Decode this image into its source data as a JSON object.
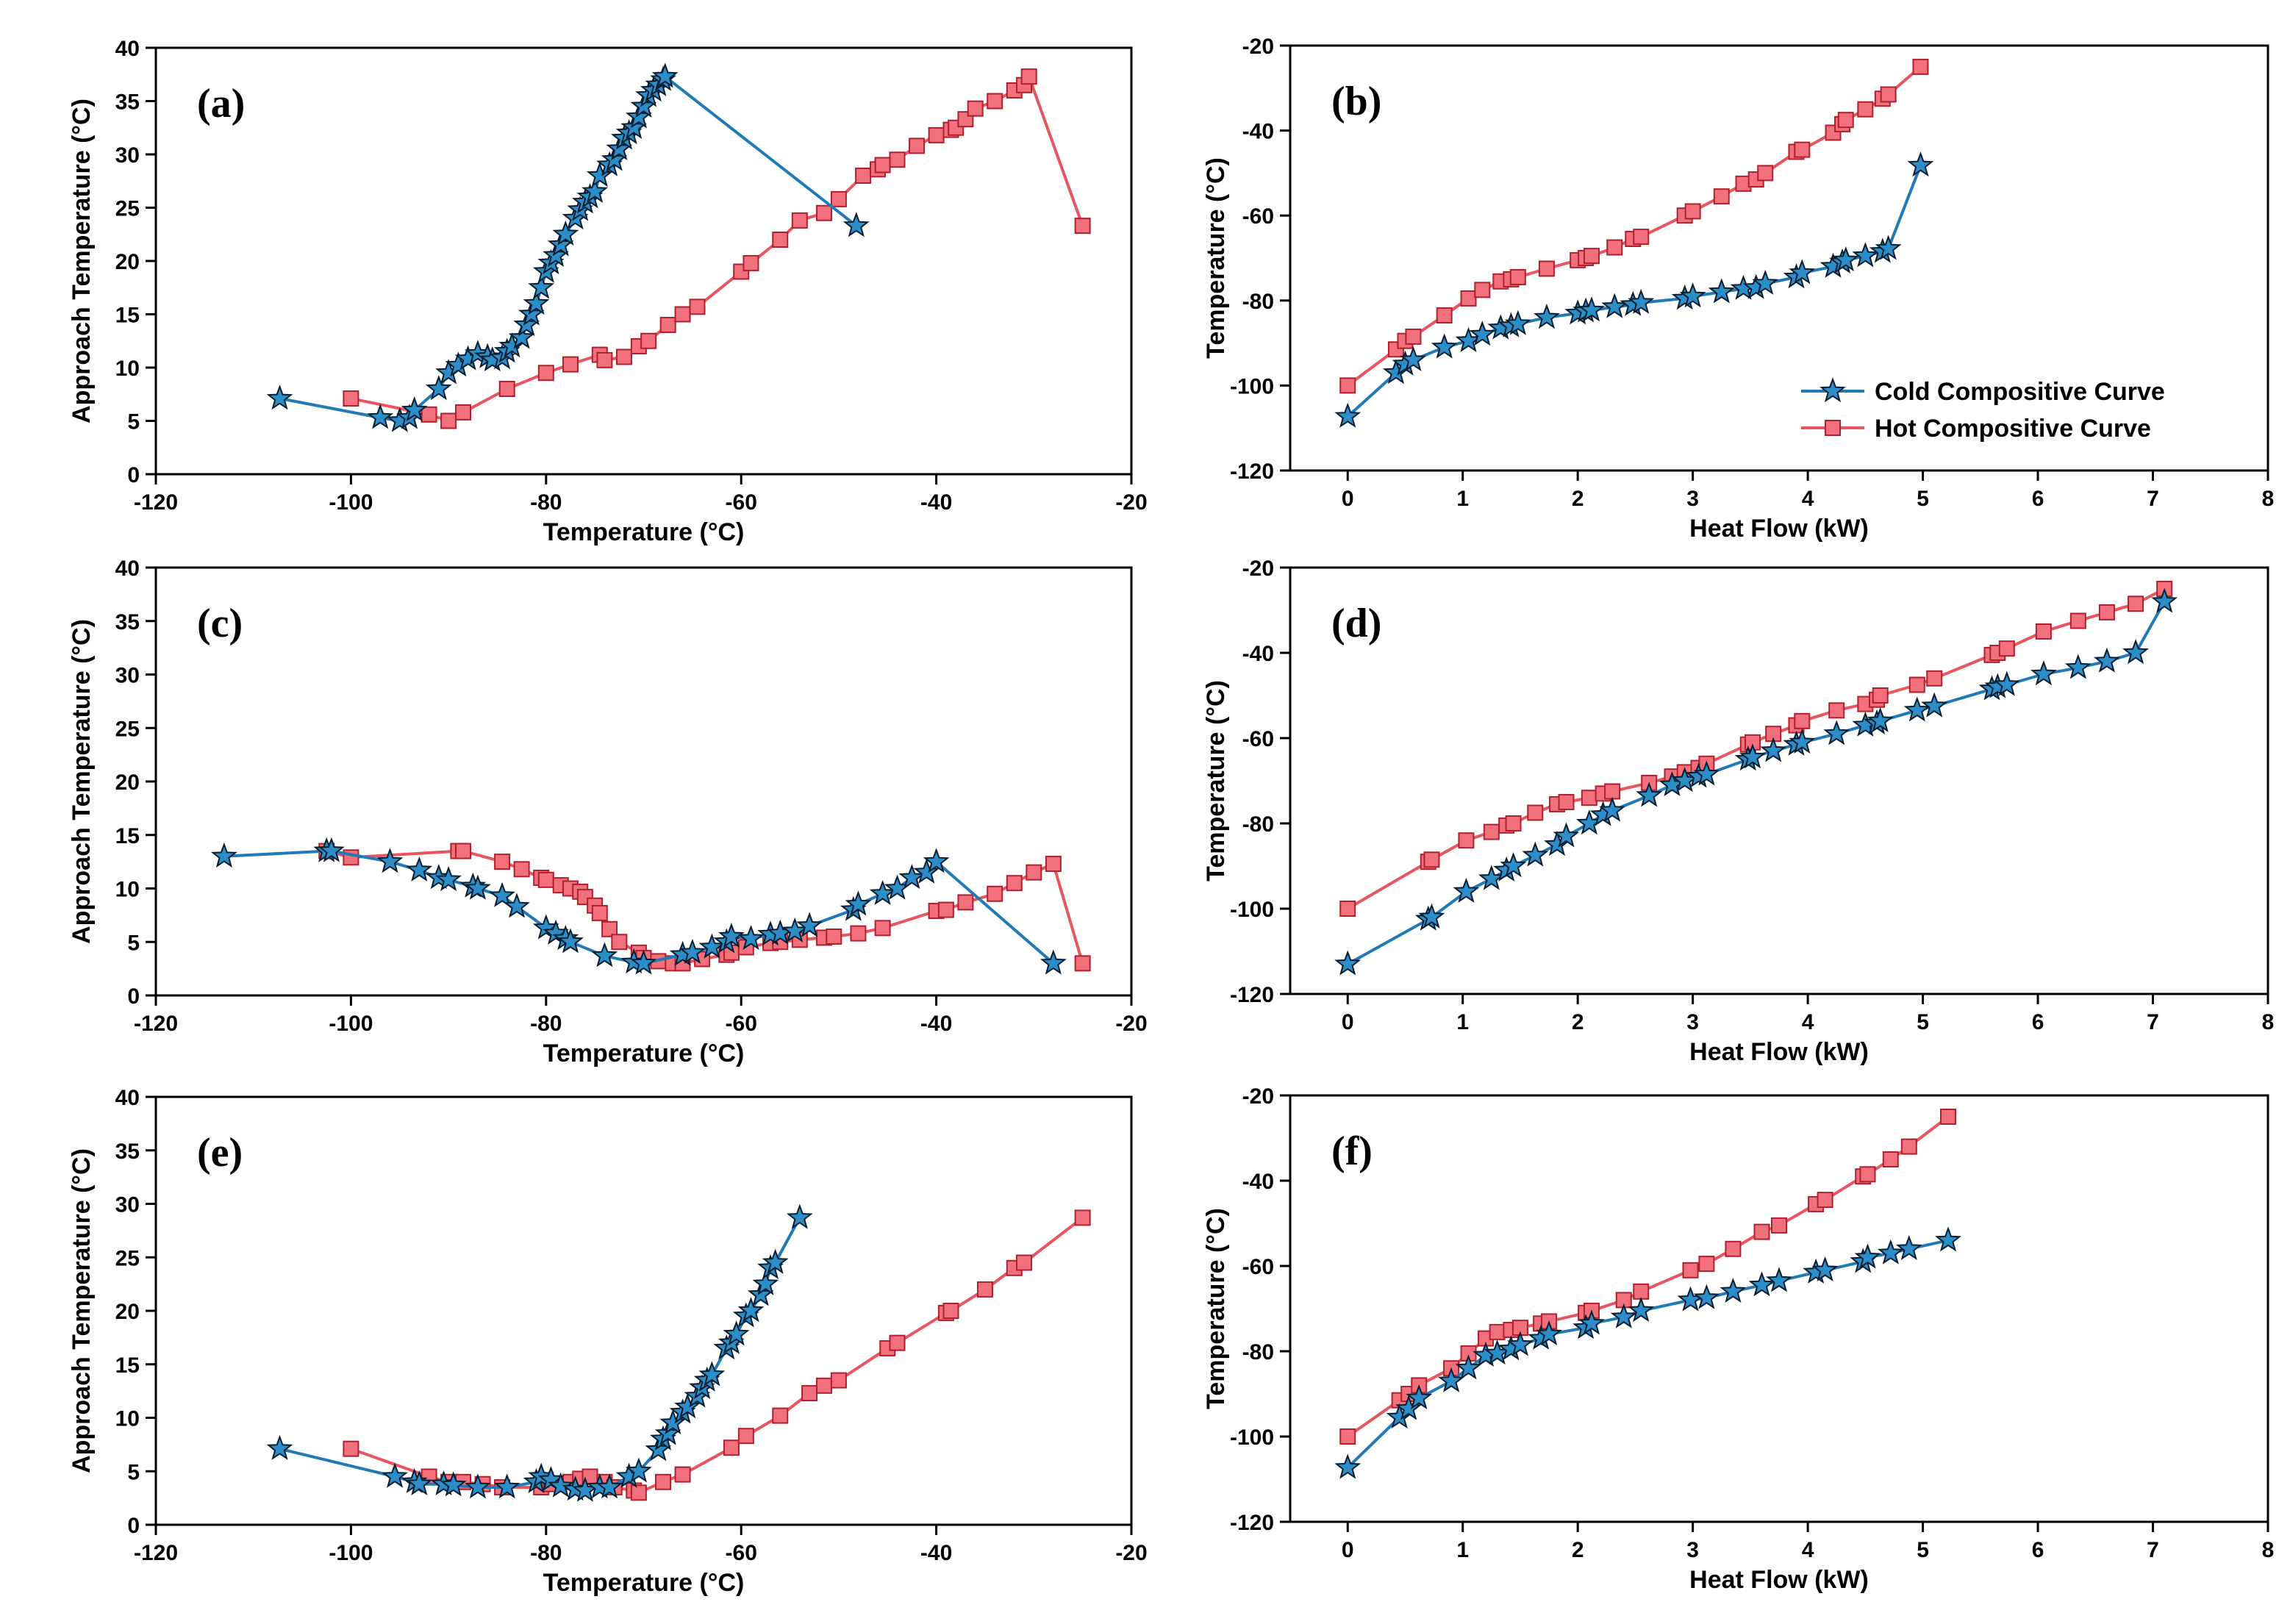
{
  "colors": {
    "cold": "#1f7ab5",
    "hot": "#e8555f",
    "hot_fill": "#f1707b",
    "cold_fill": "#2b8ec9"
  },
  "legend": {
    "cold": "Cold Compositive Curve",
    "hot": "Hot Compositive Curve"
  },
  "chart_data": [
    {
      "id": "a",
      "panel_label": "(a)",
      "type": "line",
      "xlabel": "Temperature (°C)",
      "ylabel": "Approach Temperature (°C)",
      "xlim": [
        -120,
        -20
      ],
      "ylim": [
        0,
        40
      ],
      "xticks": [
        -120,
        -100,
        -80,
        -60,
        -40,
        -20
      ],
      "yticks": [
        0,
        5,
        10,
        15,
        20,
        25,
        30,
        35,
        40
      ],
      "series": [
        {
          "name": "Cold",
          "marker": "star",
          "x": [
            -107.3,
            -97,
            -95,
            -94,
            -93.5,
            -91,
            -90,
            -89,
            -88,
            -87,
            -86,
            -85.5,
            -84.5,
            -84,
            -83.5,
            -82.5,
            -82,
            -81.5,
            -81,
            -80.5,
            -80,
            -79.5,
            -79,
            -78.5,
            -78,
            -77,
            -76.5,
            -76,
            -75.5,
            -75,
            -74.5,
            -73.5,
            -73,
            -72.5,
            -72,
            -71.5,
            -71,
            -70.5,
            -70,
            -69.5,
            -69,
            -68.5,
            -68,
            -67.8,
            -48.2
          ],
          "y": [
            7.1,
            5.3,
            5.0,
            5.3,
            6.0,
            8.0,
            9.5,
            10.2,
            10.8,
            11.3,
            11.0,
            10.7,
            10.9,
            11.5,
            12.0,
            12.8,
            14.0,
            15.0,
            16.0,
            17.5,
            19.0,
            19.8,
            20.5,
            21.5,
            22.5,
            24.0,
            24.8,
            25.5,
            26.0,
            26.5,
            28.0,
            29.0,
            29.5,
            30.5,
            31.5,
            32.0,
            32.5,
            33.5,
            34.5,
            35.5,
            36.0,
            36.5,
            37.0,
            37.3,
            23.3
          ]
        },
        {
          "name": "Hot",
          "marker": "square",
          "x": [
            -100,
            -92,
            -90,
            -88.5,
            -84,
            -80,
            -77.5,
            -74.5,
            -74,
            -72,
            -70.5,
            -69.5,
            -67.5,
            -66,
            -64.5,
            -60,
            -59,
            -56,
            -54,
            -51.5,
            -50,
            -47.5,
            -46,
            -45.5,
            -44,
            -42,
            -40,
            -38.5,
            -38,
            -37,
            -36,
            -34,
            -32,
            -31,
            -30.5,
            -25
          ],
          "y": [
            7.1,
            5.6,
            5.0,
            5.8,
            8.0,
            9.5,
            10.3,
            11.2,
            10.7,
            11.0,
            12.0,
            12.5,
            14.0,
            15.0,
            15.7,
            19.0,
            19.8,
            22.0,
            23.8,
            24.5,
            25.8,
            28.0,
            28.6,
            29.0,
            29.5,
            30.8,
            31.8,
            32.3,
            32.5,
            33.3,
            34.3,
            35.0,
            36.0,
            36.5,
            37.3,
            23.3
          ]
        }
      ]
    },
    {
      "id": "b",
      "panel_label": "(b)",
      "type": "line",
      "xlabel": "Heat Flow (kW)",
      "ylabel": "Temperature (°C)",
      "xlim": [
        -0.5,
        8
      ],
      "ylim": [
        -120,
        -20
      ],
      "xticks": [
        0,
        1,
        2,
        3,
        4,
        5,
        6,
        7,
        8
      ],
      "yticks": [
        -120,
        -100,
        -80,
        -60,
        -40,
        -20
      ],
      "legend_position": "lower-right",
      "series": [
        {
          "name": "Cold Compositive Curve",
          "marker": "star",
          "x": [
            0,
            0.42,
            0.5,
            0.57,
            0.84,
            1.05,
            1.17,
            1.33,
            1.42,
            1.48,
            1.73,
            2.0,
            2.07,
            2.12,
            2.32,
            2.48,
            2.55,
            2.93,
            3.0,
            3.25,
            3.44,
            3.55,
            3.63,
            3.9,
            3.95,
            4.22,
            4.3,
            4.33,
            4.5,
            4.65,
            4.7,
            4.98
          ],
          "y": [
            -107.3,
            -97,
            -95,
            -94,
            -91,
            -89.5,
            -88,
            -86.5,
            -86,
            -85.5,
            -84,
            -83,
            -82.5,
            -82.3,
            -81.5,
            -81,
            -80.5,
            -79.5,
            -79,
            -78,
            -77.2,
            -77,
            -76,
            -74.5,
            -73.5,
            -72,
            -71,
            -70.5,
            -69.5,
            -68.5,
            -67.8,
            -48.2
          ]
        },
        {
          "name": "Hot Compositive Curve",
          "marker": "square",
          "x": [
            0,
            0.42,
            0.5,
            0.57,
            0.84,
            1.05,
            1.17,
            1.33,
            1.42,
            1.48,
            1.73,
            2.0,
            2.07,
            2.12,
            2.32,
            2.48,
            2.55,
            2.93,
            3.0,
            3.25,
            3.44,
            3.55,
            3.63,
            3.9,
            3.95,
            4.22,
            4.3,
            4.33,
            4.5,
            4.65,
            4.7,
            4.98
          ],
          "y": [
            -100,
            -91.5,
            -89.5,
            -88.5,
            -83.5,
            -79.5,
            -77.5,
            -75.5,
            -75,
            -74.5,
            -72.5,
            -70.5,
            -70,
            -69.5,
            -67.5,
            -65.5,
            -65,
            -60,
            -59,
            -55.5,
            -52.5,
            -51.5,
            -50,
            -45,
            -44.5,
            -40.5,
            -38.5,
            -37.5,
            -35,
            -32.5,
            -31.5,
            -25
          ]
        }
      ]
    },
    {
      "id": "c",
      "panel_label": "(c)",
      "type": "line",
      "xlabel": "Temperature (°C)",
      "ylabel": "Approach Temperature (°C)",
      "xlim": [
        -120,
        -20
      ],
      "ylim": [
        0,
        40
      ],
      "xticks": [
        -120,
        -100,
        -80,
        -60,
        -40,
        -20
      ],
      "yticks": [
        0,
        5,
        10,
        15,
        20,
        25,
        30,
        35,
        40
      ],
      "series": [
        {
          "name": "Cold",
          "marker": "star",
          "x": [
            -113,
            -102.5,
            -102,
            -96,
            -93,
            -91,
            -90,
            -87.5,
            -87,
            -84.5,
            -83,
            -80,
            -79,
            -78,
            -77.5,
            -74,
            -71,
            -70,
            -66,
            -65,
            -63,
            -61.5,
            -61,
            -59,
            -57,
            -56,
            -54.5,
            -53,
            -48.5,
            -48,
            -45.5,
            -44,
            -42.5,
            -41,
            -40,
            -28
          ],
          "y": [
            13.0,
            13.5,
            13.5,
            12.5,
            11.7,
            11.0,
            10.8,
            10.2,
            10.0,
            9.3,
            8.3,
            6.3,
            5.8,
            5.3,
            5.0,
            3.7,
            3.1,
            3.0,
            3.8,
            4.0,
            4.5,
            5.0,
            5.5,
            5.3,
            5.7,
            5.8,
            6.0,
            6.5,
            8.0,
            8.5,
            9.5,
            10.0,
            11.0,
            11.5,
            12.5,
            3.0
          ]
        },
        {
          "name": "Hot",
          "marker": "square",
          "x": [
            -102.5,
            -100,
            -89,
            -88.5,
            -84.5,
            -82.5,
            -80.5,
            -80,
            -78.5,
            -77.5,
            -76.5,
            -76,
            -75,
            -74.5,
            -73.5,
            -72.5,
            -70.5,
            -70,
            -68.5,
            -67,
            -66,
            -64,
            -61.5,
            -61,
            -59.5,
            -57,
            -56,
            -54,
            -51.5,
            -50.5,
            -48,
            -45.5,
            -40,
            -39,
            -37,
            -34,
            -32,
            -30,
            -28,
            -25
          ],
          "y": [
            13.5,
            12.9,
            13.5,
            13.5,
            12.5,
            11.8,
            11.0,
            10.8,
            10.3,
            10.0,
            9.7,
            9.2,
            8.4,
            7.7,
            6.2,
            5.0,
            4.0,
            3.5,
            3.2,
            3.0,
            3.0,
            3.4,
            3.8,
            4.0,
            4.5,
            4.9,
            5.0,
            5.2,
            5.4,
            5.5,
            5.8,
            6.3,
            7.9,
            8.0,
            8.7,
            9.5,
            10.5,
            11.5,
            12.3,
            3.0
          ]
        }
      ]
    },
    {
      "id": "d",
      "panel_label": "(d)",
      "type": "line",
      "xlabel": "Heat Flow (kW)",
      "ylabel": "Temperature (°C)",
      "xlim": [
        -0.5,
        8
      ],
      "ylim": [
        -120,
        -20
      ],
      "xticks": [
        0,
        1,
        2,
        3,
        4,
        5,
        6,
        7,
        8
      ],
      "yticks": [
        -120,
        -100,
        -80,
        -60,
        -40,
        -20
      ],
      "series": [
        {
          "name": "Cold",
          "marker": "star",
          "x": [
            0,
            0.7,
            0.73,
            1.03,
            1.25,
            1.38,
            1.44,
            1.63,
            1.82,
            1.9,
            2.1,
            2.22,
            2.3,
            2.62,
            2.82,
            2.93,
            3.05,
            3.12,
            3.48,
            3.52,
            3.7,
            3.9,
            3.95,
            4.25,
            4.5,
            4.6,
            4.63,
            4.95,
            5.1,
            5.6,
            5.65,
            5.73,
            6.05,
            6.35,
            6.6,
            6.85,
            7.1
          ],
          "y": [
            -113,
            -102.5,
            -102,
            -96,
            -93,
            -91,
            -90,
            -87.5,
            -85,
            -83,
            -80,
            -78,
            -77,
            -73.5,
            -71,
            -70,
            -69,
            -68.5,
            -65,
            -64.5,
            -63,
            -61.5,
            -61,
            -59,
            -57,
            -56.5,
            -56,
            -53.5,
            -52.5,
            -48.5,
            -48,
            -47.5,
            -45,
            -43.5,
            -42,
            -40,
            -28
          ]
        },
        {
          "name": "Hot",
          "marker": "square",
          "x": [
            0,
            0.7,
            0.73,
            1.03,
            1.25,
            1.38,
            1.44,
            1.63,
            1.82,
            1.9,
            2.1,
            2.22,
            2.3,
            2.62,
            2.82,
            2.93,
            3.05,
            3.12,
            3.48,
            3.52,
            3.7,
            3.9,
            3.95,
            4.25,
            4.5,
            4.6,
            4.63,
            4.95,
            5.1,
            5.6,
            5.65,
            5.73,
            6.05,
            6.35,
            6.6,
            6.85,
            7.1
          ],
          "y": [
            -100,
            -89,
            -88.5,
            -84,
            -82,
            -80.5,
            -80,
            -77.5,
            -75.5,
            -75,
            -74,
            -73,
            -72.5,
            -70.5,
            -69,
            -68,
            -67,
            -66,
            -61.5,
            -61,
            -59,
            -57,
            -56,
            -53.5,
            -52,
            -51,
            -50,
            -47.5,
            -46,
            -40.5,
            -40,
            -39,
            -35,
            -32.5,
            -30.5,
            -28.5,
            -25
          ]
        }
      ]
    },
    {
      "id": "e",
      "panel_label": "(e)",
      "type": "line",
      "xlabel": "Temperature (°C)",
      "ylabel": "Approach Temperature (°C)",
      "xlim": [
        -120,
        -20
      ],
      "ylim": [
        0,
        40
      ],
      "xticks": [
        -120,
        -100,
        -80,
        -60,
        -40,
        -20
      ],
      "yticks": [
        0,
        5,
        10,
        15,
        20,
        25,
        30,
        35,
        40
      ],
      "series": [
        {
          "name": "Cold",
          "marker": "star",
          "x": [
            -107.3,
            -95.5,
            -93.5,
            -93,
            -90.5,
            -89.5,
            -87,
            -84,
            -81,
            -80.5,
            -79.5,
            -78.5,
            -77,
            -76,
            -74.5,
            -73.5,
            -71.5,
            -70.5,
            -68.5,
            -68,
            -67.5,
            -67,
            -66,
            -65.5,
            -64.5,
            -64,
            -63.5,
            -63,
            -61.5,
            -61,
            -60.5,
            -59.5,
            -59,
            -58,
            -57.5,
            -57,
            -56.5,
            -54
          ],
          "y": [
            7.1,
            4.5,
            4.0,
            3.8,
            3.8,
            3.7,
            3.5,
            3.5,
            4.0,
            4.5,
            4.2,
            3.6,
            3.3,
            3.2,
            3.5,
            3.5,
            4.5,
            5.0,
            7.0,
            8.0,
            8.5,
            9.5,
            10.5,
            11.0,
            12.0,
            12.8,
            13.5,
            14.0,
            16.5,
            17.0,
            17.8,
            19.5,
            20.0,
            21.5,
            22.5,
            24.0,
            24.5,
            28.7
          ]
        },
        {
          "name": "Hot",
          "marker": "square",
          "x": [
            -100,
            -92,
            -90,
            -88.5,
            -86.5,
            -84.5,
            -80.5,
            -79.5,
            -77.5,
            -76.5,
            -75.5,
            -74,
            -73,
            -71,
            -70.5,
            -68,
            -66,
            -61,
            -59.5,
            -56,
            -53,
            -51.5,
            -50,
            -45,
            -44,
            -39,
            -38.5,
            -35,
            -32,
            -31,
            -25
          ],
          "y": [
            7.1,
            4.5,
            4.0,
            4.0,
            3.8,
            3.5,
            3.5,
            3.8,
            4.0,
            4.3,
            4.5,
            4.0,
            3.5,
            3.2,
            3.0,
            4.0,
            4.7,
            7.2,
            8.3,
            10.2,
            12.3,
            13.0,
            13.5,
            16.5,
            17.0,
            19.8,
            20.0,
            22.0,
            24.0,
            24.5,
            28.7
          ]
        }
      ]
    },
    {
      "id": "f",
      "panel_label": "(f)",
      "type": "line",
      "xlabel": "Heat Flow (kW)",
      "ylabel": "Temperature (°C)",
      "xlim": [
        -0.5,
        8
      ],
      "ylim": [
        -120,
        -20
      ],
      "xticks": [
        0,
        1,
        2,
        3,
        4,
        5,
        6,
        7,
        8
      ],
      "yticks": [
        -120,
        -100,
        -80,
        -60,
        -40,
        -20
      ],
      "series": [
        {
          "name": "Cold",
          "marker": "star",
          "x": [
            0,
            0.45,
            0.53,
            0.62,
            0.9,
            1.05,
            1.2,
            1.3,
            1.42,
            1.5,
            1.68,
            1.75,
            2.07,
            2.12,
            2.4,
            2.55,
            2.98,
            3.12,
            3.35,
            3.6,
            3.75,
            4.07,
            4.15,
            4.48,
            4.52,
            4.72,
            4.88,
            5.22
          ],
          "y": [
            -107.3,
            -95.5,
            -93.5,
            -91,
            -87,
            -84,
            -81,
            -80.5,
            -79.5,
            -78.5,
            -77,
            -76,
            -74.5,
            -73.5,
            -72,
            -70.5,
            -68,
            -67.5,
            -66,
            -64.5,
            -63.5,
            -61.5,
            -61,
            -59,
            -58,
            -57,
            -56,
            -54
          ]
        },
        {
          "name": "Hot",
          "marker": "square",
          "x": [
            0,
            0.45,
            0.53,
            0.62,
            0.9,
            1.05,
            1.2,
            1.3,
            1.42,
            1.5,
            1.68,
            1.75,
            2.07,
            2.12,
            2.4,
            2.55,
            2.98,
            3.12,
            3.35,
            3.6,
            3.75,
            4.07,
            4.15,
            4.48,
            4.52,
            4.72,
            4.88,
            5.22
          ],
          "y": [
            -100,
            -91.5,
            -90,
            -88,
            -84,
            -80.5,
            -77,
            -75.5,
            -75,
            -74.5,
            -73.5,
            -73,
            -71,
            -70.5,
            -68,
            -66,
            -61,
            -59.5,
            -56,
            -52,
            -50.5,
            -45.5,
            -44.5,
            -39,
            -38.5,
            -35,
            -32,
            -25
          ]
        }
      ]
    }
  ]
}
